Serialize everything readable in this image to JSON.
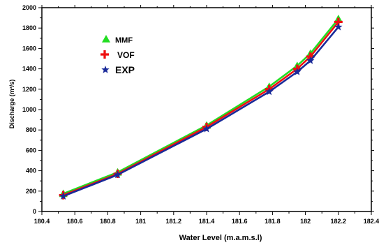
{
  "chart_data": {
    "type": "line",
    "xlabel": "Water Level  (m.a.m.s.l)",
    "ylabel": "Discharge (m³/s)",
    "xlim": [
      180.4,
      182.4
    ],
    "ylim": [
      0,
      2000
    ],
    "xticks": [
      "180.4",
      "180.6",
      "180.8",
      "181",
      "181.2",
      "181.4",
      "181.6",
      "181.8",
      "182",
      "182.2",
      "182.4"
    ],
    "yticks": [
      "0",
      "200",
      "400",
      "600",
      "800",
      "1000",
      "1200",
      "1400",
      "1600",
      "1800",
      "2000"
    ],
    "legend_position": "top-left",
    "series": [
      {
        "name": "MMF",
        "color": "#22dd22",
        "marker": "triangle",
        "x": [
          180.53,
          180.86,
          181.4,
          181.78,
          181.95,
          182.03,
          182.2
        ],
        "y": [
          175,
          385,
          845,
          1225,
          1430,
          1550,
          1890
        ]
      },
      {
        "name": "VOF",
        "color": "#ee1111",
        "marker": "plus",
        "x": [
          180.53,
          180.86,
          181.4,
          181.78,
          181.95,
          182.03,
          182.2
        ],
        "y": [
          160,
          370,
          830,
          1200,
          1400,
          1520,
          1860
        ]
      },
      {
        "name": "EXP",
        "color": "#1a2a99",
        "marker": "star",
        "x": [
          180.53,
          180.86,
          181.4,
          181.78,
          181.95,
          182.03,
          182.2
        ],
        "y": [
          150,
          360,
          810,
          1175,
          1370,
          1480,
          1810
        ]
      }
    ]
  }
}
